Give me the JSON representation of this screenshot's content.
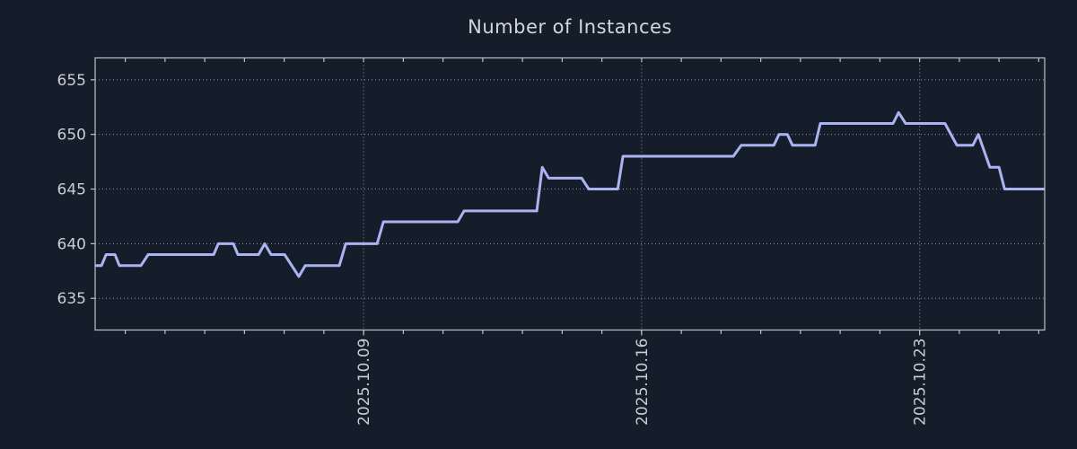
{
  "title": "Number of Instances",
  "colors": {
    "background": "#161d2a",
    "line": "#aab4f2",
    "axis_border": "#bcc1c9",
    "grid": "#8f95a0",
    "text": "#c9cdd4"
  },
  "chart_data": {
    "type": "line",
    "title": "Number of Instances",
    "xlabel": "",
    "ylabel": "",
    "legend": null,
    "grid": "dotted gridlines at major ticks, both axes",
    "x_axis": {
      "unit": "date",
      "tick_labels": [
        "2025.10.09",
        "2025.10.16",
        "2025.10.23"
      ],
      "tick_days": [
        9,
        16,
        23
      ],
      "minor_tick_interval_days": 1,
      "range_days_of_october_2025": [
        2.24,
        26.15
      ],
      "label_rotation_deg": 90
    },
    "y_axis": {
      "tick_labels": [
        "635",
        "640",
        "645",
        "650",
        "655"
      ],
      "ticks": [
        635,
        640,
        645,
        650,
        655
      ],
      "range": [
        632.1,
        657.0
      ]
    },
    "series": [
      {
        "name": "instances",
        "points_day_value": [
          [
            2.243,
            638
          ],
          [
            2.4,
            638
          ],
          [
            2.515,
            639
          ],
          [
            2.74,
            639
          ],
          [
            2.85,
            638
          ],
          [
            3.395,
            638
          ],
          [
            3.575,
            639
          ],
          [
            5.225,
            639
          ],
          [
            5.34,
            640
          ],
          [
            5.72,
            640
          ],
          [
            5.835,
            639
          ],
          [
            6.355,
            639
          ],
          [
            6.51,
            640
          ],
          [
            6.67,
            639
          ],
          [
            7.01,
            639
          ],
          [
            7.37,
            637
          ],
          [
            7.53,
            638
          ],
          [
            8.39,
            638
          ],
          [
            8.55,
            640
          ],
          [
            9.34,
            640
          ],
          [
            9.5,
            642
          ],
          [
            11.37,
            642
          ],
          [
            11.53,
            643
          ],
          [
            13.36,
            643
          ],
          [
            13.5,
            647
          ],
          [
            13.66,
            646
          ],
          [
            14.49,
            646
          ],
          [
            14.67,
            645
          ],
          [
            15.4,
            645
          ],
          [
            15.53,
            648
          ],
          [
            18.31,
            648
          ],
          [
            18.51,
            649
          ],
          [
            19.33,
            649
          ],
          [
            19.46,
            650
          ],
          [
            19.67,
            650
          ],
          [
            19.8,
            649
          ],
          [
            20.37,
            649
          ],
          [
            20.5,
            651
          ],
          [
            22.33,
            651
          ],
          [
            22.47,
            652
          ],
          [
            22.65,
            651
          ],
          [
            23.64,
            651
          ],
          [
            23.94,
            649
          ],
          [
            24.34,
            649
          ],
          [
            24.48,
            650
          ],
          [
            24.77,
            647
          ],
          [
            25.0,
            647
          ],
          [
            25.14,
            645
          ],
          [
            26.153,
            645
          ]
        ]
      }
    ]
  }
}
